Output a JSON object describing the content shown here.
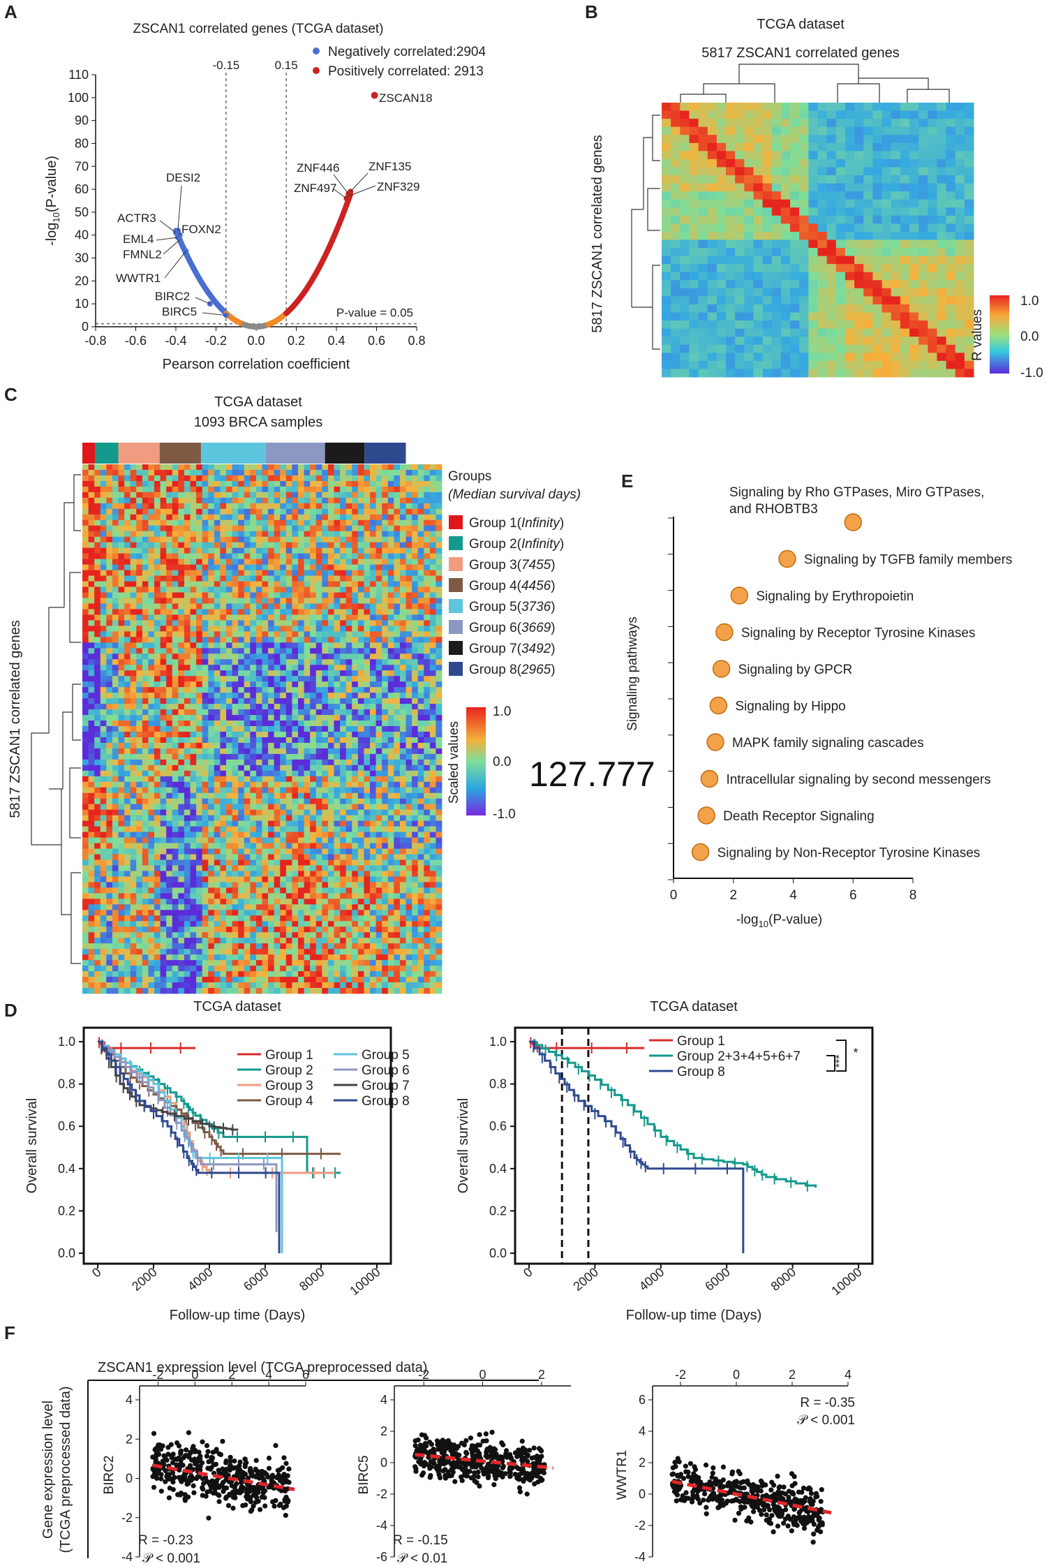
{
  "chart_data": [
    {
      "panel": "A",
      "type": "scatter",
      "title": "ZSCAN1 correlated genes (TCGA dataset)",
      "xlabel": "Pearson correlation coefficient",
      "ylabel": "-log10(P-value)",
      "xlim": [
        -0.8,
        0.8
      ],
      "ylim": [
        0,
        110
      ],
      "xticks": [
        "-0.8",
        "-0.6",
        "-0.4",
        "-0.2",
        "0.0",
        "0.2",
        "0.4",
        "0.6",
        "0.8"
      ],
      "yticks": [
        "0",
        "10",
        "20",
        "30",
        "40",
        "50",
        "60",
        "70",
        "80",
        "90",
        "100",
        "110"
      ],
      "legend": [
        "Negatively correlated:2904",
        "Positively correlated: 2913"
      ],
      "thresholds": [
        {
          "x": -0.15,
          "label": "-0.15"
        },
        {
          "x": 0.15,
          "label": "0.15"
        },
        {
          "y": 1.3,
          "label": "P-value = 0.05"
        }
      ],
      "labeled_genes": [
        {
          "name": "ZSCAN18",
          "x": 0.59,
          "y": 101
        },
        {
          "name": "ZNF446",
          "x": 0.46,
          "y": 58
        },
        {
          "name": "ZNF135",
          "x": 0.47,
          "y": 59
        },
        {
          "name": "ZNF497",
          "x": 0.45,
          "y": 56
        },
        {
          "name": "ZNF329",
          "x": 0.46,
          "y": 57
        },
        {
          "name": "DESI2",
          "x": -0.39,
          "y": 42
        },
        {
          "name": "ACTR3",
          "x": -0.4,
          "y": 41
        },
        {
          "name": "FOXN2",
          "x": -0.38,
          "y": 40
        },
        {
          "name": "EML4",
          "x": -0.39,
          "y": 39
        },
        {
          "name": "FMNL2",
          "x": -0.38,
          "y": 38
        },
        {
          "name": "WWTR1",
          "x": -0.35,
          "y": 33
        },
        {
          "name": "BIRC2",
          "x": -0.23,
          "y": 10
        },
        {
          "name": "BIRC5",
          "x": -0.15,
          "y": 5
        }
      ],
      "colors": {
        "negative": "#4a6fd1",
        "positive": "#cc2222",
        "mid": "#f08a24",
        "ns": "#8a8a8a"
      }
    },
    {
      "panel": "B",
      "type": "heatmap",
      "title": "TCGA dataset",
      "subtitle": "5817 ZSCAN1 correlated genes",
      "ylabel": "5817 ZSCAN1 correlated genes",
      "colorbar_label": "R values",
      "colorbar_ticks": [
        "1.0",
        "0.0",
        "-1.0"
      ]
    },
    {
      "panel": "C",
      "type": "heatmap",
      "title": "TCGA dataset",
      "subtitle": "1093 BRCA samples",
      "ylabel": "5817 ZSCAN1 correlated genes",
      "legend_title": "Groups",
      "legend_subtitle": "(Median survival days)",
      "groups": [
        {
          "name": "Group 1",
          "median": "Infinity",
          "color": "#e0161b"
        },
        {
          "name": "Group 2",
          "median": "Infinity",
          "color": "#139a8c"
        },
        {
          "name": "Group 3",
          "median": "7455",
          "color": "#f09c80"
        },
        {
          "name": "Group 4",
          "median": "4456",
          "color": "#7e5a45"
        },
        {
          "name": "Group 5",
          "median": "3736",
          "color": "#5ec5de"
        },
        {
          "name": "Group 6",
          "median": "3669",
          "color": "#8c97c2"
        },
        {
          "name": "Group 7",
          "median": "3492",
          "color": "#1b1b1b"
        },
        {
          "name": "Group 8",
          "median": "2965",
          "color": "#2e4a8f"
        }
      ],
      "colorbar_label": "Scaled values",
      "colorbar_ticks": [
        "1.0",
        "0.0",
        "-1.0"
      ]
    },
    {
      "panel": "E",
      "type": "scatter",
      "xlabel": "-log10(P-value)",
      "ylabel": "Signaling pathways",
      "xlim": [
        0,
        8
      ],
      "xticks": [
        "0",
        "2",
        "4",
        "6",
        "8"
      ],
      "pathways": [
        {
          "name": "Signaling by Rho GTPases, Miro GTPases,",
          "name2": "and RHOBTB3",
          "value": 6.0
        },
        {
          "name": "Signaling by TGFB family members",
          "value": 3.8
        },
        {
          "name": "Signaling by Erythropoietin",
          "value": 2.2
        },
        {
          "name": "Signaling by Receptor Tyrosine Kinases",
          "value": 1.7
        },
        {
          "name": "Signaling by GPCR",
          "value": 1.6
        },
        {
          "name": "Signaling by Hippo",
          "value": 1.5
        },
        {
          "name": "MAPK family signaling cascades",
          "value": 1.4
        },
        {
          "name": "Intracellular signaling by second messengers",
          "value": 1.2
        },
        {
          "name": "Death Receptor Signaling",
          "value": 1.1
        },
        {
          "name": "Signaling by Non-Receptor Tyrosine Kinases",
          "value": 0.9
        }
      ],
      "point_color": "#f4a24a"
    },
    {
      "panel": "D-left",
      "type": "line",
      "title": "TCGA dataset",
      "xlabel": "Follow-up time (Days)",
      "ylabel": "Overall survival",
      "xlim": [
        0,
        10000
      ],
      "ylim": [
        0,
        1.0
      ],
      "xticks": [
        "0",
        "2000",
        "4000",
        "6000",
        "8000",
        "10000"
      ],
      "yticks": [
        "0.0",
        "0.2",
        "0.4",
        "0.6",
        "0.8",
        "1.0"
      ],
      "series": [
        {
          "name": "Group 1",
          "color": "#d92b2b",
          "points": [
            [
              0,
              1
            ],
            [
              300,
              0.97
            ],
            [
              3500,
              0.97
            ]
          ]
        },
        {
          "name": "Group 2",
          "color": "#139a8c",
          "points": [
            [
              0,
              1
            ],
            [
              1000,
              0.9
            ],
            [
              2000,
              0.82
            ],
            [
              3000,
              0.72
            ],
            [
              3500,
              0.65
            ],
            [
              4500,
              0.55
            ],
            [
              7500,
              0.55
            ],
            [
              7500,
              0.38
            ],
            [
              8700,
              0.38
            ]
          ]
        },
        {
          "name": "Group 3",
          "color": "#f09c80",
          "points": [
            [
              0,
              1
            ],
            [
              1000,
              0.88
            ],
            [
              2000,
              0.8
            ],
            [
              3000,
              0.65
            ],
            [
              3500,
              0.45
            ],
            [
              4000,
              0.38
            ],
            [
              8500,
              0.38
            ]
          ]
        },
        {
          "name": "Group 4",
          "color": "#7e5a45",
          "points": [
            [
              0,
              1
            ],
            [
              1000,
              0.85
            ],
            [
              2000,
              0.75
            ],
            [
              3000,
              0.66
            ],
            [
              4000,
              0.55
            ],
            [
              4500,
              0.47
            ],
            [
              8700,
              0.47
            ]
          ]
        },
        {
          "name": "Group 5",
          "color": "#5ec5de",
          "points": [
            [
              0,
              1
            ],
            [
              1000,
              0.9
            ],
            [
              2000,
              0.8
            ],
            [
              3000,
              0.6
            ],
            [
              3500,
              0.45
            ],
            [
              6600,
              0.45
            ],
            [
              6600,
              0.0
            ]
          ]
        },
        {
          "name": "Group 6",
          "color": "#8c97c2",
          "points": [
            [
              0,
              1
            ],
            [
              1000,
              0.88
            ],
            [
              2000,
              0.76
            ],
            [
              3000,
              0.58
            ],
            [
              3700,
              0.42
            ],
            [
              6400,
              0.42
            ],
            [
              6400,
              0.1
            ]
          ]
        },
        {
          "name": "Group 7",
          "color": "#444444",
          "points": [
            [
              0,
              1
            ],
            [
              800,
              0.8
            ],
            [
              1500,
              0.7
            ],
            [
              2500,
              0.66
            ],
            [
              4000,
              0.6
            ],
            [
              5000,
              0.58
            ]
          ]
        },
        {
          "name": "Group 8",
          "color": "#2e4a8f",
          "points": [
            [
              0,
              1
            ],
            [
              800,
              0.85
            ],
            [
              1500,
              0.72
            ],
            [
              2500,
              0.6
            ],
            [
              3200,
              0.45
            ],
            [
              3600,
              0.38
            ],
            [
              6500,
              0.38
            ],
            [
              6500,
              0.0
            ]
          ]
        }
      ]
    },
    {
      "panel": "D-right",
      "type": "line",
      "title": "TCGA dataset",
      "xlabel": "Follow-up time (Days)",
      "ylabel": "Overall survival",
      "xlim": [
        0,
        10000
      ],
      "ylim": [
        0,
        1.0
      ],
      "xticks": [
        "0",
        "2000",
        "4000",
        "6000",
        "8000",
        "10000"
      ],
      "yticks": [
        "0.0",
        "0.2",
        "0.4",
        "0.6",
        "0.8",
        "1.0"
      ],
      "vlines": [
        1000,
        1800
      ],
      "significance": [
        "***",
        "*"
      ],
      "series": [
        {
          "name": "Group 1",
          "color": "#d92b2b",
          "points": [
            [
              0,
              1
            ],
            [
              300,
              0.97
            ],
            [
              3500,
              0.97
            ]
          ]
        },
        {
          "name": "Group 2+3+4+5+6+7",
          "color": "#139a8c",
          "points": [
            [
              0,
              1
            ],
            [
              1000,
              0.92
            ],
            [
              2000,
              0.82
            ],
            [
              3000,
              0.7
            ],
            [
              4000,
              0.55
            ],
            [
              5000,
              0.45
            ],
            [
              6500,
              0.42
            ],
            [
              7200,
              0.36
            ],
            [
              8700,
              0.31
            ]
          ]
        },
        {
          "name": "Group 8",
          "color": "#2e4a8f",
          "points": [
            [
              0,
              1
            ],
            [
              800,
              0.85
            ],
            [
              1500,
              0.72
            ],
            [
              2500,
              0.6
            ],
            [
              3200,
              0.45
            ],
            [
              3600,
              0.4
            ],
            [
              6500,
              0.4
            ],
            [
              6500,
              0.0
            ]
          ]
        }
      ]
    },
    {
      "panel": "F-1",
      "type": "scatter",
      "ylabel": "BIRC2",
      "xlim": [
        -3,
        6
      ],
      "ylim": [
        -4,
        4
      ],
      "xticks": [
        "-2",
        "0",
        "2",
        "4",
        "6"
      ],
      "yticks": [
        "4",
        "2",
        "0",
        "-2",
        "-4"
      ],
      "R": "R = -0.23",
      "P": "𝒫 < 0.001",
      "slope": -0.16,
      "intercept": 0.3
    },
    {
      "panel": "F-2",
      "type": "scatter",
      "ylabel": "BIRC5",
      "xlim": [
        -3,
        3
      ],
      "ylim": [
        -6,
        4
      ],
      "xticks": [
        "-2",
        "0",
        "2"
      ],
      "yticks": [
        "4",
        "2",
        "0",
        "-2",
        "-4",
        "-6"
      ],
      "R": "R = -0.15",
      "P": "𝒫 < 0.01",
      "slope": -0.18,
      "intercept": 0.1
    },
    {
      "panel": "F-3",
      "type": "scatter",
      "ylabel": "WWTR1",
      "xlim": [
        -3,
        4
      ],
      "ylim": [
        -4,
        6
      ],
      "xticks": [
        "-2",
        "0",
        "2",
        "4"
      ],
      "yticks": [
        "6",
        "4",
        "2",
        "0",
        "-2",
        "-4"
      ],
      "R": "R = -0.35",
      "P": "𝒫 < 0.001",
      "slope": -0.35,
      "intercept": 0.0
    }
  ],
  "labels": {
    "panelA": "A",
    "panelB": "B",
    "panelC": "C",
    "panelD": "D",
    "panelE": "E",
    "panelF": "F",
    "f_title": "ZSCAN1 expression level (TCGA preprocessed data)",
    "f_ylabel1": "Gene expression level",
    "f_ylabel2": "(TCGA preprocessed data)",
    "overlay_number": "127.777"
  }
}
